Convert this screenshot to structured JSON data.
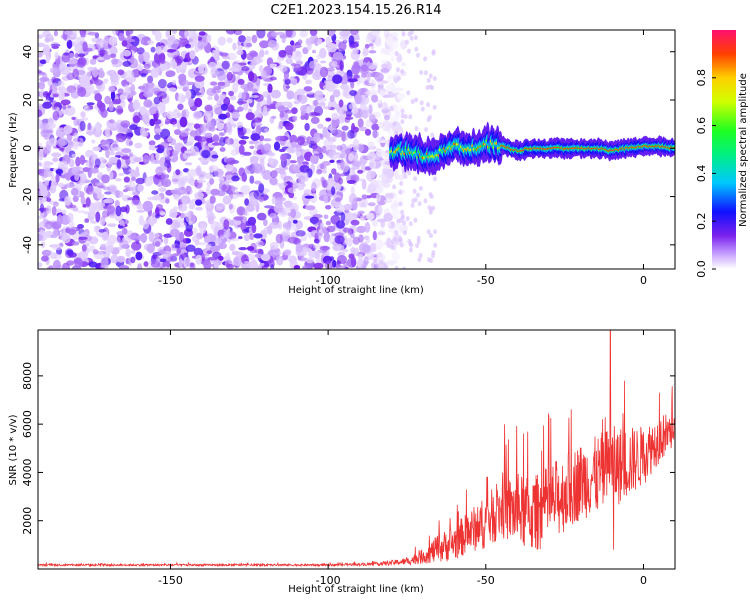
{
  "figure": {
    "title": "C2E1.2023.154.15.26.R14"
  },
  "chart_data": [
    {
      "type": "heatmap",
      "xlabel": "Height of straight line (km)",
      "ylabel": "Frequency (Hz)",
      "xlim": [
        -192,
        10
      ],
      "ylim": [
        -50,
        49
      ],
      "xticks": [
        -150,
        -100,
        -50,
        0
      ],
      "yticks": [
        -40,
        -20,
        0,
        20,
        40
      ],
      "colorbar": {
        "label": "Normalized spectral amplitude",
        "ticks": [
          0.0,
          0.2,
          0.4,
          0.6,
          0.8
        ],
        "colormap": "rainbow"
      },
      "description_values": {
        "noise_region_x": [
          -192,
          -80
        ],
        "signal_track": [
          {
            "x": -80,
            "y": -2
          },
          {
            "x": -75,
            "y": -1
          },
          {
            "x": -70,
            "y": -3
          },
          {
            "x": -65,
            "y": -2
          },
          {
            "x": -60,
            "y": 1
          },
          {
            "x": -55,
            "y": -1
          },
          {
            "x": -50,
            "y": 2
          },
          {
            "x": -45,
            "y": 1
          },
          {
            "x": -40,
            "y": -1
          },
          {
            "x": -35,
            "y": 0
          },
          {
            "x": -30,
            "y": 0
          },
          {
            "x": -25,
            "y": 0
          },
          {
            "x": -20,
            "y": 0
          },
          {
            "x": -15,
            "y": 0
          },
          {
            "x": -10,
            "y": -1
          },
          {
            "x": -5,
            "y": 0
          },
          {
            "x": 0,
            "y": 1
          },
          {
            "x": 5,
            "y": 1
          },
          {
            "x": 10,
            "y": 0
          }
        ]
      }
    },
    {
      "type": "line",
      "xlabel": "Height of straight line (km)",
      "ylabel": "SNR (10 * v/v)",
      "xlim": [
        -192,
        10
      ],
      "ylim": [
        0,
        9900
      ],
      "xticks": [
        -150,
        -100,
        -50,
        0
      ],
      "yticks": [
        2000,
        4000,
        6000,
        8000
      ],
      "series": [
        {
          "color": "#ee3333",
          "envelope": [
            {
              "x": -192,
              "base": 150,
              "spread": 80
            },
            {
              "x": -100,
              "base": 150,
              "spread": 80
            },
            {
              "x": -85,
              "base": 180,
              "spread": 120
            },
            {
              "x": -75,
              "base": 250,
              "spread": 300
            },
            {
              "x": -70,
              "base": 400,
              "spread": 600
            },
            {
              "x": -65,
              "base": 600,
              "spread": 1200
            },
            {
              "x": -60,
              "base": 800,
              "spread": 1500
            },
            {
              "x": -55,
              "base": 1200,
              "spread": 1800
            },
            {
              "x": -50,
              "base": 1500,
              "spread": 2200
            },
            {
              "x": -45,
              "base": 2000,
              "spread": 2500
            },
            {
              "x": -40,
              "base": 1800,
              "spread": 3000
            },
            {
              "x": -35,
              "base": 1600,
              "spread": 3200
            },
            {
              "x": -30,
              "base": 2000,
              "spread": 3300
            },
            {
              "x": -25,
              "base": 2500,
              "spread": 3300
            },
            {
              "x": -20,
              "base": 3000,
              "spread": 3200
            },
            {
              "x": -15,
              "base": 3200,
              "spread": 3300
            },
            {
              "x": -10,
              "base": 3500,
              "spread": 3500
            },
            {
              "x": -5,
              "base": 3800,
              "spread": 3000
            },
            {
              "x": 0,
              "base": 4200,
              "spread": 2500
            },
            {
              "x": 5,
              "base": 5000,
              "spread": 2000
            },
            {
              "x": 10,
              "base": 5500,
              "spread": 1500
            }
          ],
          "spikes": [
            {
              "x": -10.5,
              "y": 9900
            },
            {
              "x": -9.5,
              "y": 800
            },
            {
              "x": -44,
              "y": 6000
            },
            {
              "x": -30,
              "y": 6300
            },
            {
              "x": -13,
              "y": 6200
            },
            {
              "x": 5,
              "y": 7300
            },
            {
              "x": 9,
              "y": 7000
            }
          ]
        }
      ]
    }
  ]
}
